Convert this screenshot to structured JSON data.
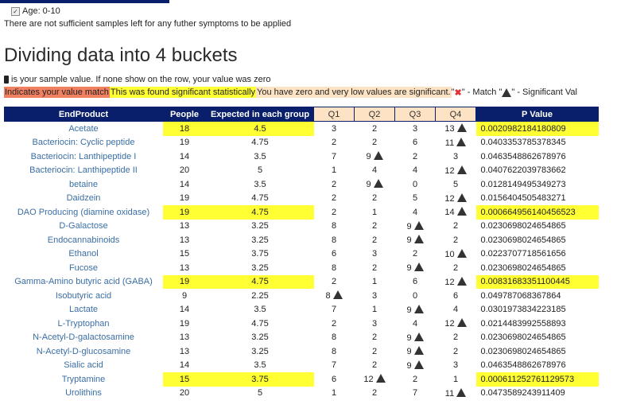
{
  "filter": {
    "age_label": "Age: 0-10"
  },
  "notice": "There are not sufficient samples left for any futher symptoms to be applied",
  "title": "Dividing data into 4 buckets",
  "sample_note": "is your sample value. If none show on the row, your value was zero",
  "legend": {
    "match": "Indicates your value match",
    "significant": "This was found significant statistically",
    "zero": "You have zero and very low values are significant.",
    "match_icon_open": " \"",
    "match_icon_close": "\" - Match \"",
    "sig_icon_close": "\" - Significant Val"
  },
  "table": {
    "headers": [
      "EndProduct",
      "People",
      "Expected in each group",
      "Q1",
      "Q2",
      "Q3",
      "Q4",
      "P Value"
    ],
    "rows": [
      {
        "name": "Acetate",
        "people": "18",
        "expected": "4.5",
        "q": [
          "3",
          "2",
          "3",
          "13"
        ],
        "sig": [
          false,
          false,
          false,
          true
        ],
        "p": "0.0020982184180809",
        "hl": true
      },
      {
        "name": "Bacteriocin: Cyclic peptide",
        "people": "19",
        "expected": "4.75",
        "q": [
          "2",
          "2",
          "6",
          "11"
        ],
        "sig": [
          false,
          false,
          false,
          true
        ],
        "p": "0.0403353785378345",
        "hl": false
      },
      {
        "name": "Bacteriocin: Lanthipeptide I",
        "people": "14",
        "expected": "3.5",
        "q": [
          "7",
          "9",
          "2",
          "3"
        ],
        "sig": [
          false,
          true,
          false,
          false
        ],
        "p": "0.0463548862678976",
        "hl": false
      },
      {
        "name": "Bacteriocin: Lanthipeptide II",
        "people": "20",
        "expected": "5",
        "q": [
          "1",
          "4",
          "4",
          "12"
        ],
        "sig": [
          false,
          false,
          false,
          true
        ],
        "p": "0.0407622039783662",
        "hl": false
      },
      {
        "name": "betaine",
        "people": "14",
        "expected": "3.5",
        "q": [
          "2",
          "9",
          "0",
          "5"
        ],
        "sig": [
          false,
          true,
          false,
          false
        ],
        "p": "0.0128149495349273",
        "hl": false
      },
      {
        "name": "Daidzein",
        "people": "19",
        "expected": "4.75",
        "q": [
          "2",
          "2",
          "5",
          "12"
        ],
        "sig": [
          false,
          false,
          false,
          true
        ],
        "p": "0.0156404505483271",
        "hl": false
      },
      {
        "name": "DAO Producing (diamine oxidase)",
        "people": "19",
        "expected": "4.75",
        "q": [
          "2",
          "1",
          "4",
          "14"
        ],
        "sig": [
          false,
          false,
          false,
          true
        ],
        "p": "0.000664956140456523",
        "hl": true
      },
      {
        "name": "D-Galactose",
        "people": "13",
        "expected": "3.25",
        "q": [
          "8",
          "2",
          "9",
          "2"
        ],
        "sig": [
          false,
          false,
          true,
          false
        ],
        "p": "0.0230698024654865",
        "hl": false
      },
      {
        "name": "Endocannabinoids",
        "people": "13",
        "expected": "3.25",
        "q": [
          "8",
          "2",
          "9",
          "2"
        ],
        "sig": [
          false,
          false,
          true,
          false
        ],
        "p": "0.0230698024654865",
        "hl": false
      },
      {
        "name": "Ethanol",
        "people": "15",
        "expected": "3.75",
        "q": [
          "6",
          "3",
          "2",
          "10"
        ],
        "sig": [
          false,
          false,
          false,
          true
        ],
        "p": "0.0223707718561656",
        "hl": false
      },
      {
        "name": "Fucose",
        "people": "13",
        "expected": "3.25",
        "q": [
          "8",
          "2",
          "9",
          "2"
        ],
        "sig": [
          false,
          false,
          true,
          false
        ],
        "p": "0.0230698024654865",
        "hl": false
      },
      {
        "name": "Gamma-Amino butyric acid (GABA)",
        "people": "19",
        "expected": "4.75",
        "q": [
          "2",
          "1",
          "6",
          "12"
        ],
        "sig": [
          false,
          false,
          false,
          true
        ],
        "p": "0.00831683351100445",
        "hl": true
      },
      {
        "name": "Isobutyric acid",
        "people": "9",
        "expected": "2.25",
        "q": [
          "8",
          "3",
          "0",
          "6"
        ],
        "sig": [
          true,
          false,
          false,
          false
        ],
        "p": "0.049787068367864",
        "hl": false
      },
      {
        "name": "Lactate",
        "people": "14",
        "expected": "3.5",
        "q": [
          "7",
          "1",
          "9",
          "4"
        ],
        "sig": [
          false,
          false,
          true,
          false
        ],
        "p": "0.0301973834223185",
        "hl": false
      },
      {
        "name": "L-Tryptophan",
        "people": "19",
        "expected": "4.75",
        "q": [
          "2",
          "3",
          "4",
          "12"
        ],
        "sig": [
          false,
          false,
          false,
          true
        ],
        "p": "0.0214483992558893",
        "hl": false
      },
      {
        "name": "N-Acetyl-D-galactosamine",
        "people": "13",
        "expected": "3.25",
        "q": [
          "8",
          "2",
          "9",
          "2"
        ],
        "sig": [
          false,
          false,
          true,
          false
        ],
        "p": "0.0230698024654865",
        "hl": false
      },
      {
        "name": "N-Acetyl-D-glucosamine",
        "people": "13",
        "expected": "3.25",
        "q": [
          "8",
          "2",
          "9",
          "2"
        ],
        "sig": [
          false,
          false,
          true,
          false
        ],
        "p": "0.0230698024654865",
        "hl": false
      },
      {
        "name": "Sialic acid",
        "people": "14",
        "expected": "3.5",
        "q": [
          "7",
          "2",
          "9",
          "3"
        ],
        "sig": [
          false,
          false,
          true,
          false
        ],
        "p": "0.0463548862678976",
        "hl": false
      },
      {
        "name": "Tryptamine",
        "people": "15",
        "expected": "3.75",
        "q": [
          "6",
          "12",
          "2",
          "1"
        ],
        "sig": [
          false,
          true,
          false,
          false
        ],
        "p": "0.000611252761129573",
        "hl": true
      },
      {
        "name": "Urolithins",
        "people": "20",
        "expected": "5",
        "q": [
          "1",
          "2",
          "7",
          "11"
        ],
        "sig": [
          false,
          false,
          false,
          true
        ],
        "p": "0.0473589243911409",
        "hl": false
      }
    ]
  },
  "colors": {
    "header": "#0a1f6b",
    "significant": "#ffff33",
    "match": "#f08060",
    "zero": "#fde3c4",
    "link": "#3a6ea5"
  },
  "icons": {
    "sample": "sample-bar-icon",
    "match": "match-x-icon",
    "significant": "significant-triangle-icon"
  }
}
